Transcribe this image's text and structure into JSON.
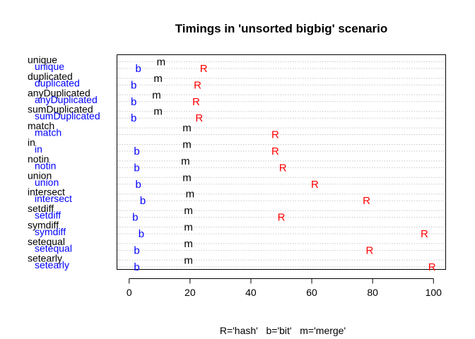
{
  "chart_data": {
    "type": "scatter",
    "title": "Timings in 'unsorted bigbig' scenario",
    "footer": "R='hash'   b='bit'   m='merge'",
    "xlim": [
      -4,
      104
    ],
    "x_ticks": [
      0,
      20,
      40,
      60,
      80,
      100
    ],
    "x_tick_labels": [
      "0",
      "20",
      "40",
      "60",
      "80",
      "100"
    ],
    "grid": "dotted horizontal lines per row",
    "colors": {
      "merge": "#000000",
      "bit": "#0000ff",
      "hash": "#ff0000"
    },
    "label_colors": {
      "primary": "#000000",
      "secondary": "#0000ff"
    },
    "markers": {
      "hash": "R",
      "bit": "b",
      "merge": "m"
    },
    "rows": [
      {
        "label": "unique",
        "sublabel": "unique",
        "merge": 10.5,
        "bit": 3.0,
        "hash": 24.5
      },
      {
        "label": "duplicated",
        "sublabel": "duplicated",
        "merge": 9.5,
        "bit": 1.5,
        "hash": 22.5
      },
      {
        "label": "anyDuplicated",
        "sublabel": "anyDuplicated",
        "merge": 9.0,
        "bit": 1.5,
        "hash": 22.0
      },
      {
        "label": "sumDuplicated",
        "sublabel": "sumDuplicated",
        "merge": 9.5,
        "bit": 1.5,
        "hash": 23.0
      },
      {
        "label": "match",
        "sublabel": "match",
        "merge": 19.0,
        "bit": null,
        "hash": 48.0
      },
      {
        "label": "in",
        "sublabel": "in",
        "merge": 19.0,
        "bit": 2.5,
        "hash": 48.0
      },
      {
        "label": "notin",
        "sublabel": "notin",
        "merge": 18.5,
        "bit": 2.5,
        "hash": 50.5
      },
      {
        "label": "union",
        "sublabel": "union",
        "merge": 19.0,
        "bit": 3.0,
        "hash": 61.0
      },
      {
        "label": "intersect",
        "sublabel": "intersect",
        "merge": 20.0,
        "bit": 4.5,
        "hash": 78.0
      },
      {
        "label": "setdiff",
        "sublabel": "setdiff",
        "merge": 19.5,
        "bit": 2.0,
        "hash": 50.0
      },
      {
        "label": "symdiff",
        "sublabel": "symdiff",
        "merge": 19.5,
        "bit": 4.0,
        "hash": 97.0
      },
      {
        "label": "setequal",
        "sublabel": "setequal",
        "merge": 19.5,
        "bit": 2.5,
        "hash": 79.0
      },
      {
        "label": "setearly",
        "sublabel": "setearly",
        "merge": 19.5,
        "bit": 2.5,
        "hash": 99.5
      }
    ]
  }
}
